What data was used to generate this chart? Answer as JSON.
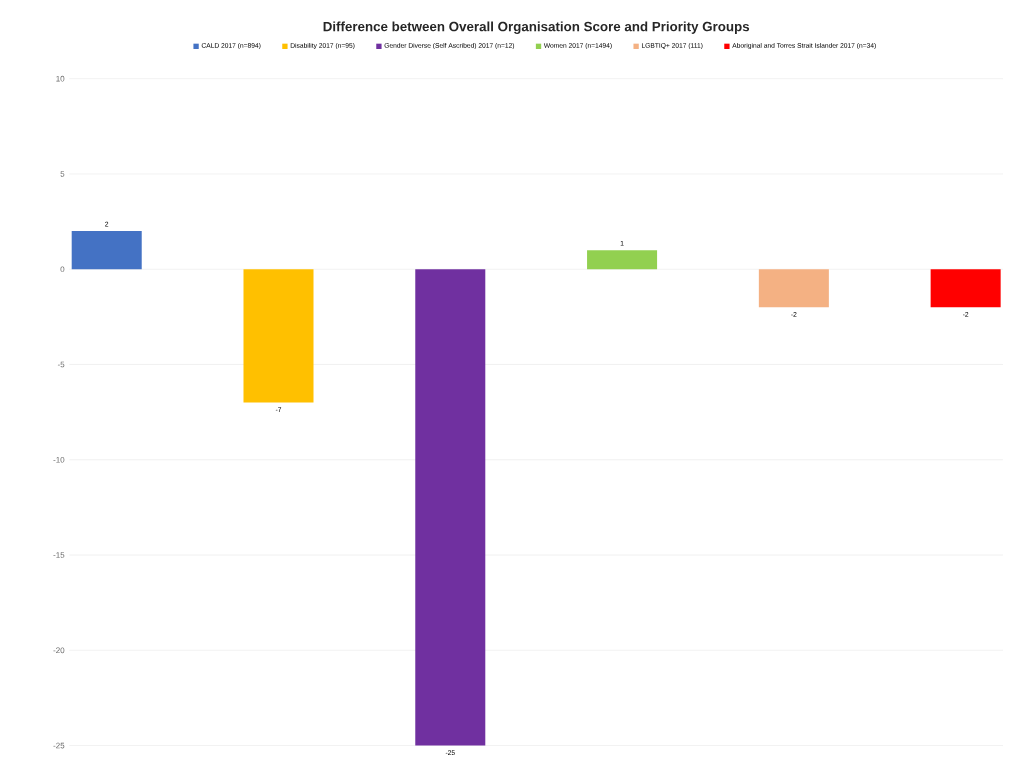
{
  "chart_data": {
    "type": "bar",
    "title": "Difference between Overall Organisation Score and Priority Groups",
    "categories": [
      null
    ],
    "series": [
      {
        "name": "CALD 2017 (n=894)",
        "color": "#4472c4",
        "values": [
          2
        ]
      },
      {
        "name": "Disability 2017 (n=95)",
        "color": "#ffc000",
        "values": [
          -7
        ]
      },
      {
        "name": "Gender Diverse (Self Ascribed) 2017 (n=12)",
        "color": "#7030a0",
        "values": [
          -25
        ]
      },
      {
        "name": "Women 2017 (n=1494)",
        "color": "#92d050",
        "values": [
          1
        ]
      },
      {
        "name": "LGBTIQ+ 2017 (111)",
        "color": "#f4b183",
        "values": [
          -2
        ]
      },
      {
        "name": "Aboriginal and Torres Strait Islander 2017 (n=34)",
        "color": "#ff0000",
        "values": [
          -2
        ]
      }
    ],
    "ylim": [
      -25,
      10
    ],
    "yticks": [
      -25,
      -20,
      -15,
      -10,
      -5,
      0,
      5,
      10
    ],
    "grid": "y",
    "legend": "top",
    "data_labels": true
  }
}
